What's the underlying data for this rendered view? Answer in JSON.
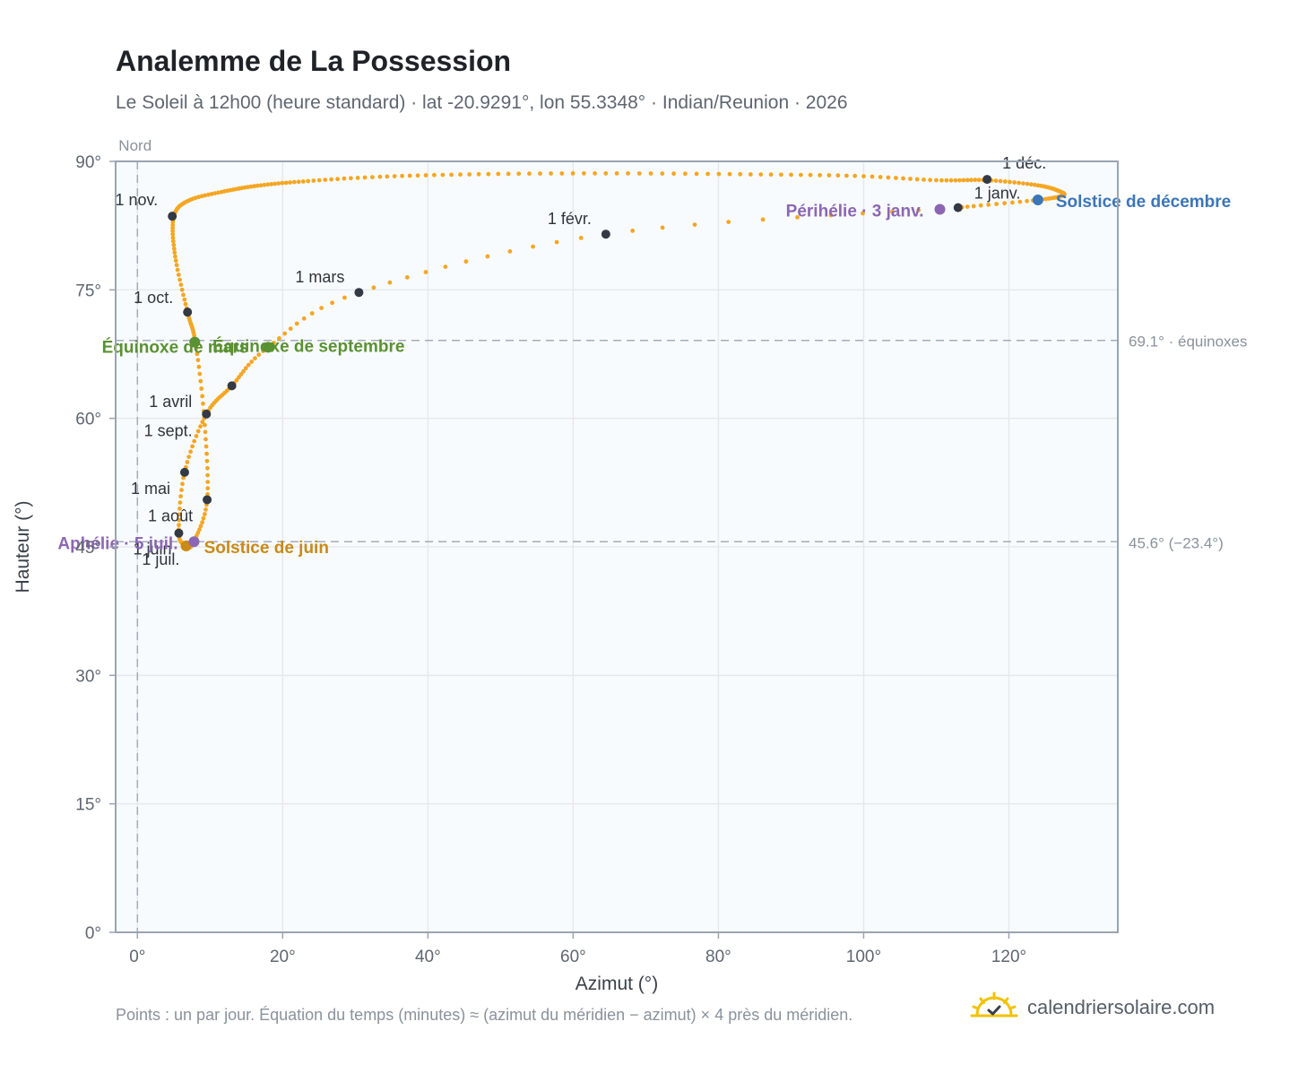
{
  "title": "Analemme de La Possession",
  "subtitle": "Le Soleil à 12h00 (heure standard) · lat -20.9291°, lon 55.3348° · Indian/Reunion · 2026",
  "footnote": "Points : un par jour. Équation du temps (minutes) ≈ (azimut du méridien − azimut) × 4 près du méridien.",
  "brand": {
    "text": "calendriersolaire.com",
    "icon": "sun-checkmark-logo-icon"
  },
  "colors": {
    "path": "#f5a623",
    "month_dot": "#333a44",
    "equinox": "#5a9132",
    "solstice_december": "#3b76b8",
    "solstice_june": "#c98a16",
    "apsis": "#8b67b3",
    "plot_bg": "#f8fbfe",
    "grid": "#e5e9ee",
    "frame": "#9aa4b2",
    "ref_line": "#a4adb8"
  },
  "chart_data": {
    "type": "scatter",
    "xlabel": "Azimut (°)",
    "ylabel": "Hauteur (°)",
    "xlim": [
      -3,
      135
    ],
    "ylim": [
      0,
      90
    ],
    "xticks": [
      0,
      20,
      40,
      60,
      80,
      100,
      120
    ],
    "yticks": [
      0,
      15,
      30,
      45,
      60,
      75,
      90
    ],
    "xtick_labels": [
      "0°",
      "20°",
      "40°",
      "60°",
      "80°",
      "100°",
      "120°"
    ],
    "ytick_labels": [
      "0°",
      "15°",
      "30°",
      "45°",
      "60°",
      "75°",
      "90°"
    ],
    "north_label": "Nord",
    "north_azimuth": 0,
    "reference_lines": [
      {
        "y": 69.1,
        "label": "69.1° · équinoxes"
      },
      {
        "y": 45.6,
        "label": "45.6° (−23.4°)"
      }
    ],
    "path_anchors": [
      {
        "x": 113,
        "y": 84.6
      },
      {
        "x": 64.5,
        "y": 81.5
      },
      {
        "x": 30.5,
        "y": 74.7
      },
      {
        "x": 18,
        "y": 68.3
      },
      {
        "x": 13,
        "y": 63.8
      },
      {
        "x": 9.5,
        "y": 60.5
      },
      {
        "x": 6.5,
        "y": 53.7
      },
      {
        "x": 5.7,
        "y": 46.6
      },
      {
        "x": 6.8,
        "y": 45.2
      },
      {
        "x": 7.7,
        "y": 45.5
      },
      {
        "x": 9.6,
        "y": 50.5
      },
      {
        "x": 9.2,
        "y": 60.0
      },
      {
        "x": 8,
        "y": 68.8
      },
      {
        "x": 6.9,
        "y": 72.4
      },
      {
        "x": 5.2,
        "y": 78.9
      },
      {
        "x": 5.0,
        "y": 83.5
      },
      {
        "x": 7.0,
        "y": 85.4
      },
      {
        "x": 12,
        "y": 86.5
      },
      {
        "x": 17.0,
        "y": 87.2
      },
      {
        "x": 23.5,
        "y": 87.7
      },
      {
        "x": 33.4,
        "y": 88.2
      },
      {
        "x": 47.0,
        "y": 88.5
      },
      {
        "x": 64.5,
        "y": 88.6
      },
      {
        "x": 83.0,
        "y": 88.5
      },
      {
        "x": 98.8,
        "y": 88.3
      },
      {
        "x": 110,
        "y": 87.8
      },
      {
        "x": 117,
        "y": 87.8
      },
      {
        "x": 124,
        "y": 87.2
      },
      {
        "x": 127,
        "y": 86.5
      },
      {
        "x": 127.4,
        "y": 86.0
      },
      {
        "x": 124,
        "y": 85.5
      },
      {
        "x": 113,
        "y": 84.6
      }
    ],
    "months": [
      {
        "label": "1 janv.",
        "x": 113.0,
        "y": 84.6
      },
      {
        "label": "1 févr.",
        "x": 64.5,
        "y": 81.5
      },
      {
        "label": "1 mars",
        "x": 30.5,
        "y": 74.7
      },
      {
        "label": "1 avril",
        "x": 9.5,
        "y": 60.5
      },
      {
        "label": "1 mai",
        "x": 6.5,
        "y": 53.7
      },
      {
        "label": "1 juin",
        "x": 5.7,
        "y": 46.6
      },
      {
        "label": "1 juil.",
        "x": 6.8,
        "y": 45.2
      },
      {
        "label": "1 août",
        "x": 9.6,
        "y": 50.5
      },
      {
        "label": "1 sept.",
        "x": 13.0,
        "y": 63.8
      },
      {
        "label": "1 oct.",
        "x": 6.9,
        "y": 72.4
      },
      {
        "label": "1 nov.",
        "x": 4.8,
        "y": 83.6
      },
      {
        "label": "1 déc.",
        "x": 117.0,
        "y": 87.9
      }
    ],
    "events": [
      {
        "label": "Solstice de décembre",
        "x": 124.0,
        "y": 85.5,
        "kind": "solstice_december"
      },
      {
        "label": "Solstice de juin",
        "x": 6.7,
        "y": 45.1,
        "kind": "solstice_june"
      },
      {
        "label": "Équinoxe de mars",
        "x": 7.9,
        "y": 68.9,
        "kind": "equinox"
      },
      {
        "label": "Équinoxe de septembre",
        "x": 18.0,
        "y": 68.3,
        "kind": "equinox"
      },
      {
        "label": "Périhélie · 3 janv.",
        "x": 110.5,
        "y": 84.4,
        "kind": "apsis"
      },
      {
        "label": "Aphélie · 5 juil.",
        "x": 7.8,
        "y": 45.6,
        "kind": "apsis"
      }
    ]
  }
}
